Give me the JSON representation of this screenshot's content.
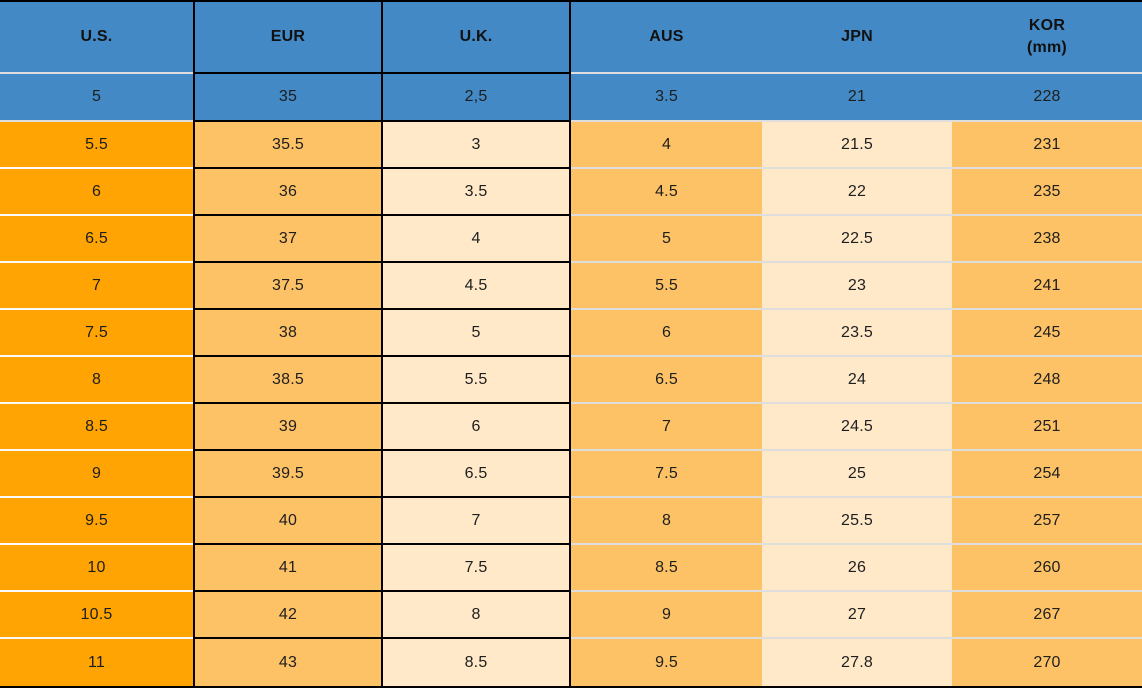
{
  "header": {
    "us": "U.S.",
    "eur": "EUR",
    "uk": "U.K.",
    "aus": "AUS",
    "jpn": "JPN",
    "kor_line1": "KOR",
    "kor_line2": "(mm)"
  },
  "colors": {
    "header_blue": "#4289c6",
    "us_orange": "#ffa402",
    "mid_orange": "#fdc266",
    "cream": "#ffe9c9",
    "separator_light": "#dedede",
    "separator_white": "#fafafa",
    "border_black": "#000000",
    "text": "#1e1e1e"
  },
  "chart_data": {
    "type": "table",
    "title": "Shoe size conversion table",
    "columns": [
      "U.S.",
      "EUR",
      "U.K.",
      "AUS",
      "JPN",
      "KOR (mm)"
    ],
    "rows": [
      [
        "5",
        "35",
        "2,5",
        "3.5",
        "21",
        "228"
      ],
      [
        "5.5",
        "35.5",
        "3",
        "4",
        "21.5",
        "231"
      ],
      [
        "6",
        "36",
        "3.5",
        "4.5",
        "22",
        "235"
      ],
      [
        "6.5",
        "37",
        "4",
        "5",
        "22.5",
        "238"
      ],
      [
        "7",
        "37.5",
        "4.5",
        "5.5",
        "23",
        "241"
      ],
      [
        "7.5",
        "38",
        "5",
        "6",
        "23.5",
        "245"
      ],
      [
        "8",
        "38.5",
        "5.5",
        "6.5",
        "24",
        "248"
      ],
      [
        "8.5",
        "39",
        "6",
        "7",
        "24.5",
        "251"
      ],
      [
        "9",
        "39.5",
        "6.5",
        "7.5",
        "25",
        "254"
      ],
      [
        "9.5",
        "40",
        "7",
        "8",
        "25.5",
        "257"
      ],
      [
        "10",
        "41",
        "7.5",
        "8.5",
        "26",
        "260"
      ],
      [
        "10.5",
        "42",
        "8",
        "9",
        "27",
        "267"
      ],
      [
        "11",
        "43",
        "8.5",
        "9.5",
        "27.8",
        "270"
      ]
    ],
    "layout_hints": {
      "first_data_row_highlighted_blue": true,
      "black_cell_borders_columns": [
        "EUR",
        "U.K."
      ],
      "grid": "light separators elsewhere"
    }
  }
}
